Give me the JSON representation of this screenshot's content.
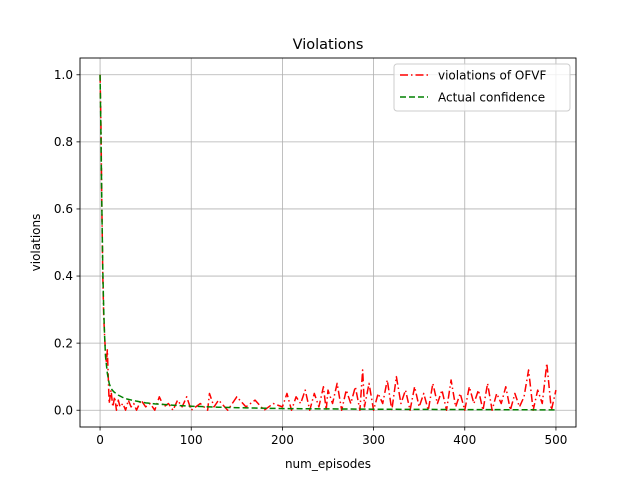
{
  "chart_data": {
    "type": "line",
    "title": "Violations",
    "xlabel": "num_episodes",
    "ylabel": "violations",
    "xlim": [
      -22,
      522
    ],
    "ylim": [
      -0.05,
      1.05
    ],
    "xticks": [
      0,
      100,
      200,
      300,
      400,
      500
    ],
    "xtick_labels": [
      "0",
      "100",
      "200",
      "300",
      "400",
      "500"
    ],
    "yticks": [
      0.0,
      0.2,
      0.4,
      0.6,
      0.8,
      1.0
    ],
    "ytick_labels": [
      "0.0",
      "0.2",
      "0.4",
      "0.6",
      "0.8",
      "1.0"
    ],
    "grid": true,
    "legend_position": "top-right",
    "series": [
      {
        "name": "violations of OFVF",
        "color": "#ff0000",
        "linestyle": "dashdot",
        "x": [
          0,
          1,
          2,
          3,
          4,
          5,
          6,
          7,
          8,
          9,
          10,
          12,
          14,
          16,
          18,
          20,
          22,
          25,
          28,
          31,
          34,
          37,
          40,
          45,
          50,
          55,
          60,
          65,
          70,
          75,
          80,
          85,
          90,
          95,
          100,
          110,
          118,
          120,
          125,
          130,
          140,
          150,
          160,
          170,
          180,
          190,
          200,
          205,
          210,
          215,
          220,
          225,
          230,
          235,
          240,
          245,
          248,
          250,
          255,
          260,
          265,
          270,
          275,
          280,
          285,
          288,
          290,
          295,
          300,
          305,
          310,
          315,
          320,
          325,
          330,
          335,
          340,
          345,
          350,
          355,
          360,
          365,
          370,
          375,
          380,
          385,
          390,
          395,
          400,
          405,
          410,
          415,
          420,
          425,
          430,
          435,
          440,
          445,
          450,
          455,
          460,
          465,
          470,
          475,
          480,
          485,
          490,
          495,
          500
        ],
        "y": [
          1.0,
          0.85,
          0.6,
          0.4,
          0.28,
          0.22,
          0.17,
          0.14,
          0.18,
          0.1,
          0.02,
          0.06,
          0.01,
          0.04,
          0.0,
          0.03,
          0.01,
          0.02,
          0.0,
          0.03,
          0.01,
          0.02,
          0.0,
          0.03,
          0.01,
          0.02,
          0.0,
          0.04,
          0.01,
          0.02,
          0.0,
          0.03,
          0.01,
          0.04,
          0.0,
          0.02,
          0.0,
          0.05,
          0.01,
          0.03,
          0.0,
          0.04,
          0.01,
          0.03,
          0.0,
          0.02,
          0.01,
          0.05,
          0.0,
          0.04,
          0.02,
          0.06,
          0.0,
          0.05,
          0.01,
          0.07,
          0.0,
          0.06,
          0.02,
          0.08,
          0.0,
          0.06,
          0.02,
          0.07,
          0.0,
          0.12,
          0.01,
          0.08,
          0.0,
          0.05,
          0.02,
          0.09,
          0.0,
          0.1,
          0.02,
          0.06,
          0.0,
          0.07,
          0.01,
          0.05,
          0.0,
          0.08,
          0.02,
          0.06,
          0.0,
          0.09,
          0.01,
          0.05,
          0.0,
          0.07,
          0.02,
          0.06,
          0.0,
          0.08,
          0.0,
          0.05,
          0.02,
          0.07,
          0.0,
          0.05,
          0.01,
          0.04,
          0.12,
          0.0,
          0.06,
          0.02,
          0.14,
          0.0,
          0.06
        ]
      },
      {
        "name": "Actual confidence",
        "color": "#008000",
        "linestyle": "dashed",
        "x": [
          0,
          1,
          2,
          3,
          4,
          5,
          6,
          8,
          10,
          12,
          15,
          20,
          25,
          30,
          40,
          50,
          60,
          80,
          100,
          130,
          160,
          200,
          250,
          300,
          350,
          400,
          450,
          500
        ],
        "y": [
          1.0,
          0.82,
          0.6,
          0.42,
          0.3,
          0.22,
          0.16,
          0.11,
          0.08,
          0.065,
          0.055,
          0.045,
          0.038,
          0.033,
          0.027,
          0.022,
          0.019,
          0.015,
          0.012,
          0.009,
          0.007,
          0.005,
          0.004,
          0.003,
          0.0025,
          0.002,
          0.0015,
          0.001
        ]
      }
    ]
  }
}
